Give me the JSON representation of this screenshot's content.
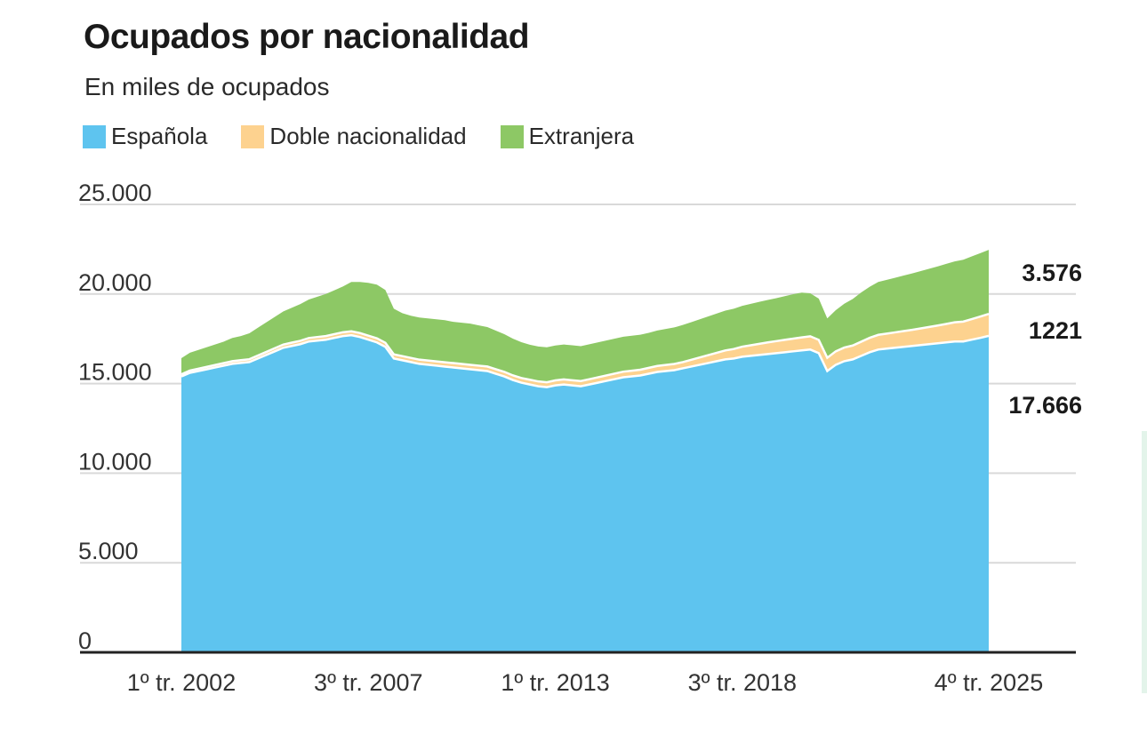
{
  "chart_data": {
    "type": "area",
    "stacked": true,
    "title": "Ocupados por nacionalidad",
    "subtitle": "En miles de ocupados",
    "ylim": [
      0,
      25000
    ],
    "yticks": [
      0,
      5000,
      10000,
      15000,
      20000,
      25000
    ],
    "ytick_labels": [
      "0",
      "5.000",
      "10.000",
      "15.000",
      "20.000",
      "25.000"
    ],
    "xtick_labels": [
      "1º tr. 2002",
      "3º tr. 2007",
      "1º tr. 2013",
      "3º tr. 2018",
      "4º tr. 2025"
    ],
    "xtick_index": [
      0,
      22,
      44,
      66,
      95
    ],
    "period_count": 96,
    "series": [
      {
        "name": "Española",
        "color": "#5ec4ef",
        "values": [
          15400,
          15600,
          15700,
          15800,
          15900,
          16000,
          16100,
          16150,
          16200,
          16400,
          16600,
          16800,
          17000,
          17100,
          17200,
          17350,
          17400,
          17450,
          17550,
          17650,
          17700,
          17600,
          17450,
          17300,
          17050,
          16400,
          16300,
          16200,
          16100,
          16050,
          16000,
          15950,
          15900,
          15850,
          15800,
          15750,
          15700,
          15550,
          15400,
          15200,
          15050,
          14950,
          14850,
          14800,
          14900,
          14950,
          14900,
          14850,
          14950,
          15050,
          15150,
          15250,
          15350,
          15400,
          15450,
          15550,
          15650,
          15700,
          15750,
          15850,
          15950,
          16050,
          16150,
          16250,
          16350,
          16400,
          16500,
          16550,
          16600,
          16650,
          16700,
          16750,
          16800,
          16850,
          16900,
          16700,
          15700,
          16050,
          16250,
          16350,
          16550,
          16750,
          16900,
          16950,
          17000,
          17050,
          17100,
          17150,
          17200,
          17250,
          17300,
          17350,
          17350,
          17450,
          17550,
          17666
        ]
      },
      {
        "name": "Doble nacionalidad",
        "color": "#fdd28f",
        "values": [
          120,
          125,
          130,
          135,
          140,
          145,
          150,
          155,
          160,
          165,
          170,
          175,
          180,
          185,
          190,
          195,
          200,
          205,
          210,
          215,
          220,
          222,
          224,
          226,
          228,
          230,
          232,
          234,
          236,
          238,
          240,
          242,
          244,
          246,
          248,
          250,
          252,
          254,
          256,
          258,
          262,
          266,
          270,
          274,
          278,
          282,
          286,
          290,
          295,
          300,
          305,
          310,
          315,
          320,
          325,
          330,
          335,
          340,
          345,
          350,
          380,
          410,
          440,
          470,
          500,
          530,
          560,
          590,
          620,
          650,
          670,
          690,
          710,
          730,
          740,
          740,
          740,
          750,
          760,
          775,
          790,
          805,
          820,
          840,
          860,
          880,
          900,
          930,
          960,
          990,
          1030,
          1070,
          1110,
          1150,
          1190,
          1221
        ]
      },
      {
        "name": "Extranjera",
        "color": "#8dc865",
        "values": [
          900,
          1000,
          1050,
          1100,
          1150,
          1200,
          1300,
          1350,
          1450,
          1550,
          1650,
          1750,
          1850,
          1950,
          2050,
          2150,
          2250,
          2350,
          2450,
          2550,
          2750,
          2850,
          2950,
          3000,
          2950,
          2550,
          2400,
          2350,
          2350,
          2350,
          2350,
          2350,
          2300,
          2300,
          2300,
          2250,
          2200,
          2150,
          2100,
          2050,
          2000,
          1950,
          1950,
          1950,
          1950,
          1950,
          1950,
          1950,
          1950,
          1950,
          1950,
          1950,
          1950,
          1950,
          1950,
          1950,
          1980,
          2010,
          2040,
          2070,
          2100,
          2130,
          2160,
          2190,
          2220,
          2250,
          2280,
          2310,
          2340,
          2370,
          2400,
          2440,
          2480,
          2500,
          2400,
          2300,
          2200,
          2300,
          2450,
          2600,
          2750,
          2850,
          2950,
          3000,
          3050,
          3100,
          3150,
          3200,
          3250,
          3300,
          3350,
          3400,
          3450,
          3500,
          3540,
          3576
        ]
      }
    ],
    "end_labels": [
      "3.576",
      "1221",
      "17.666"
    ]
  }
}
